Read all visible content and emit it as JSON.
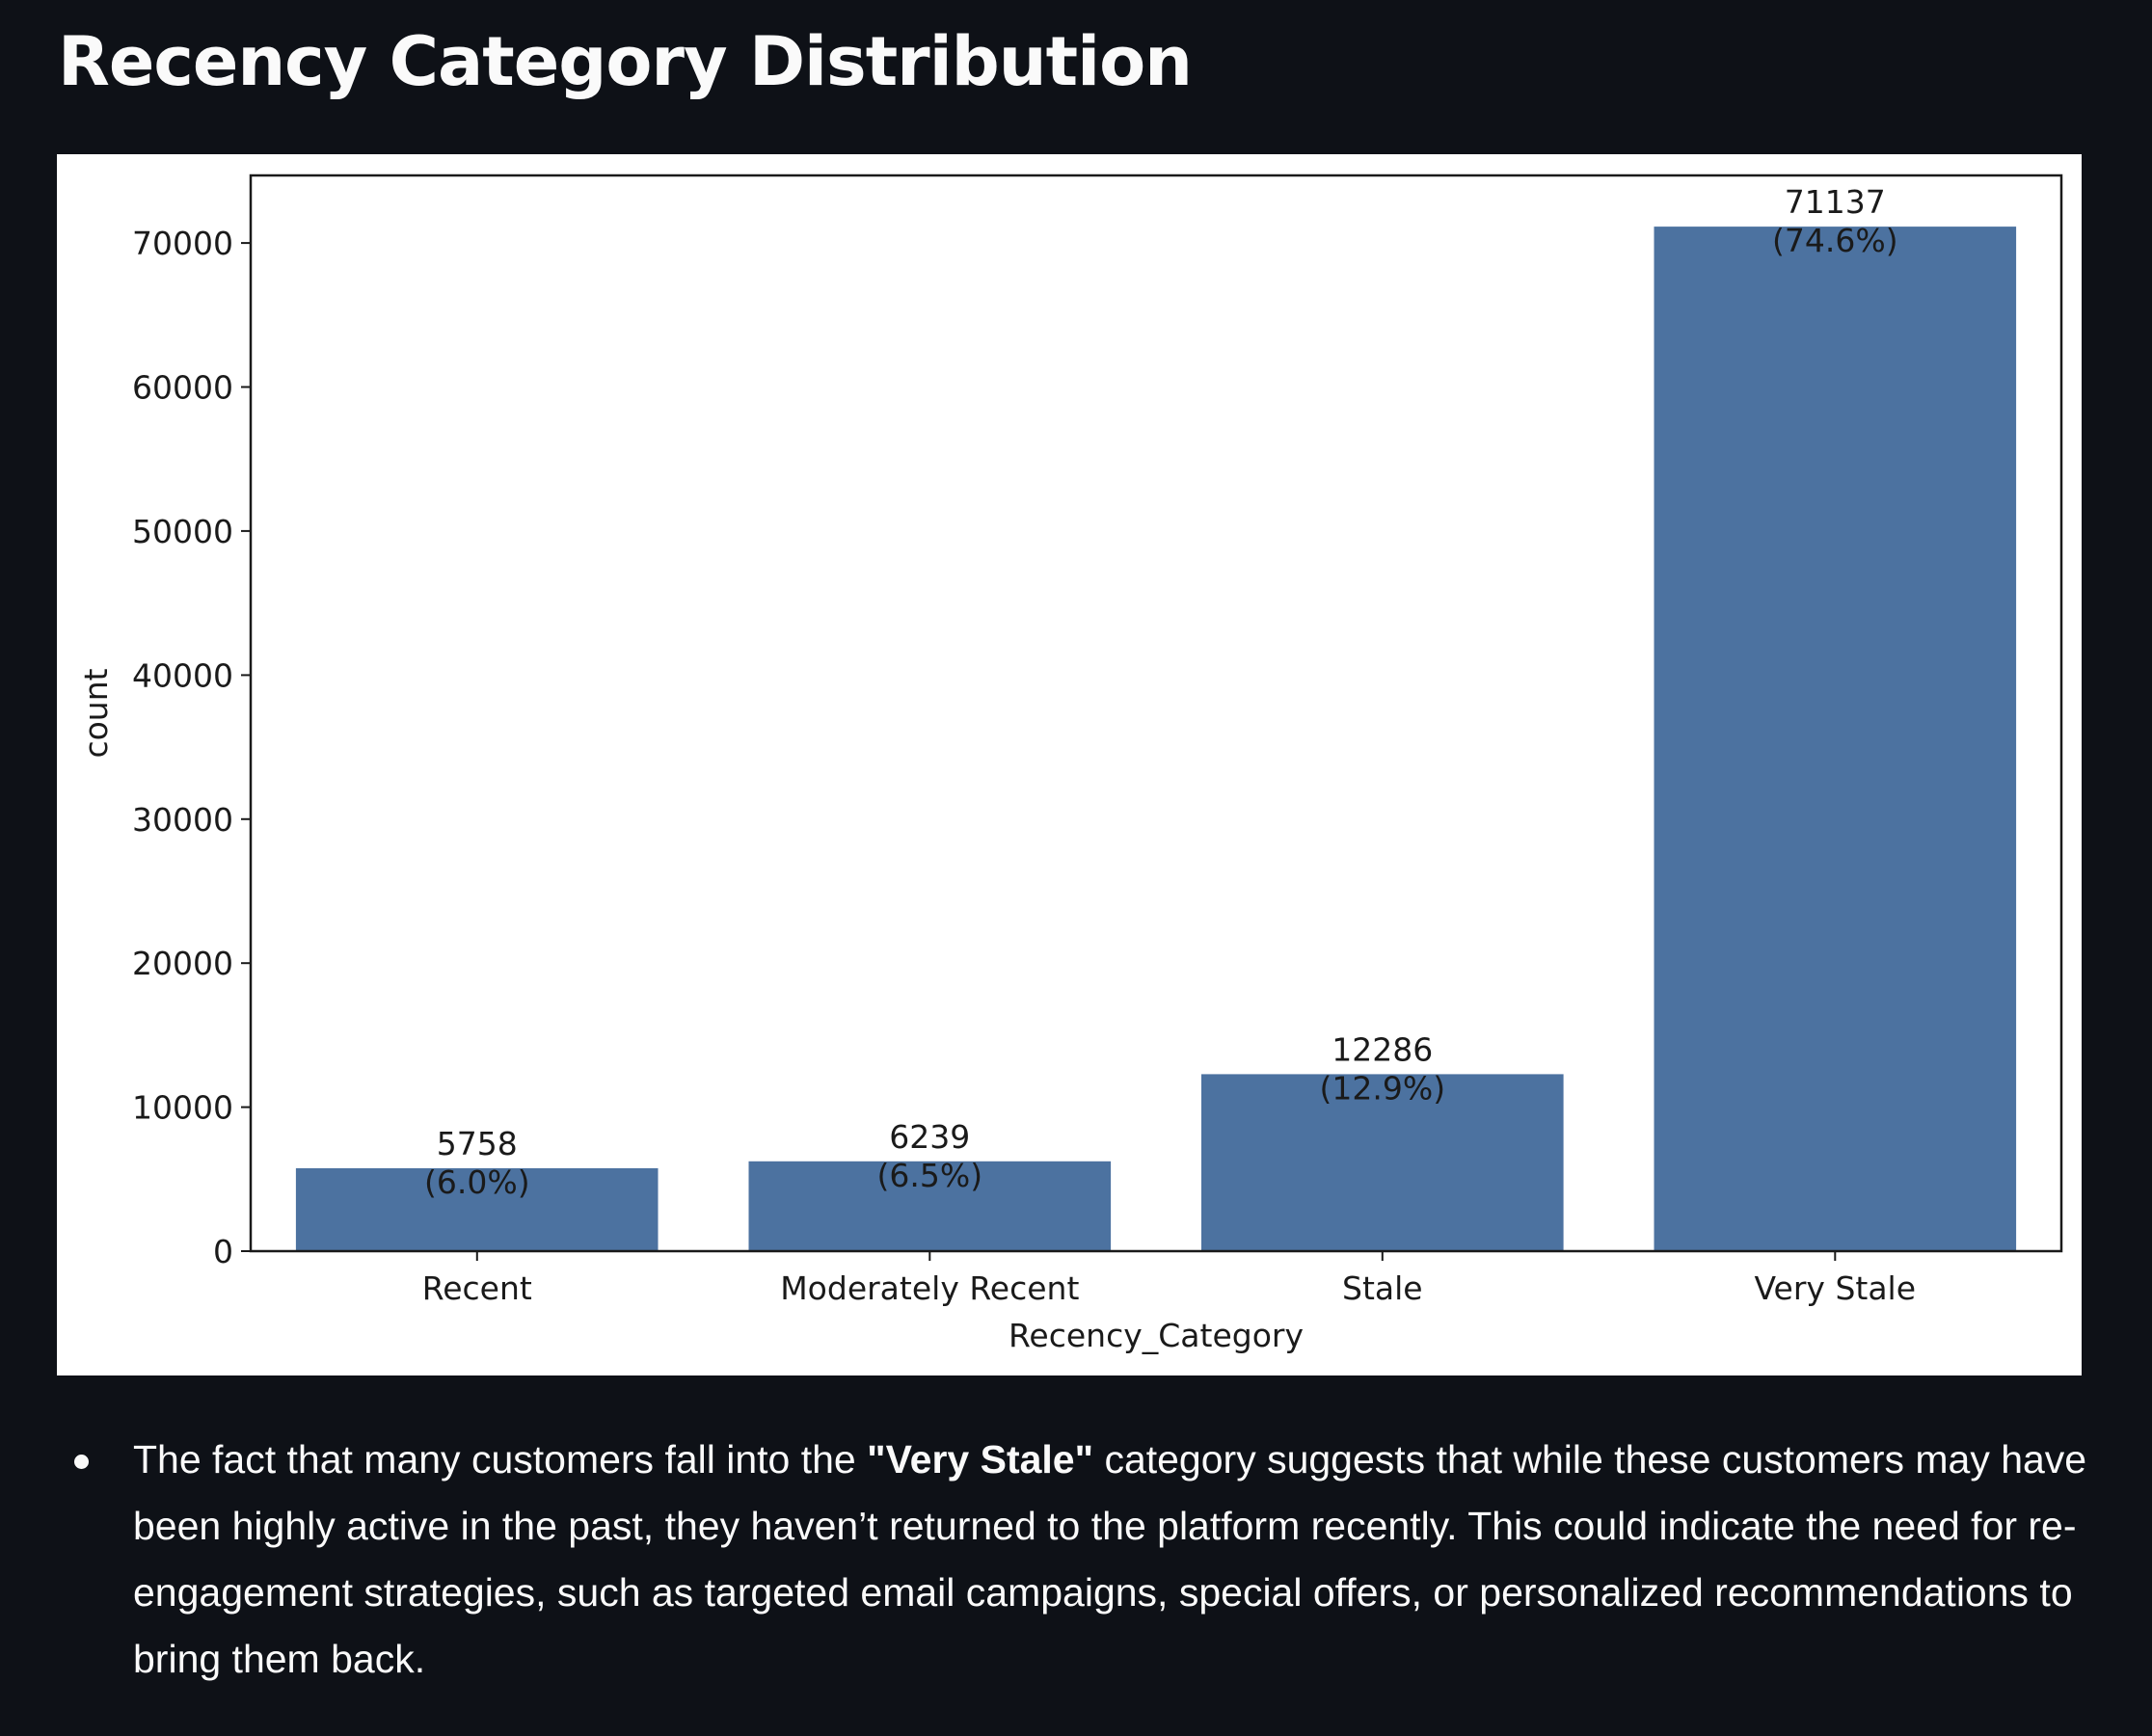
{
  "page": {
    "title": "Recency Category Distribution"
  },
  "chart_data": {
    "type": "bar",
    "title": "",
    "xlabel": "Recency_Category",
    "ylabel": "count",
    "categories": [
      "Recent",
      "Moderately Recent",
      "Stale",
      "Very Stale"
    ],
    "values": [
      5758,
      6239,
      12286,
      71137
    ],
    "value_labels": [
      "5758",
      "6239",
      "12286",
      "71137"
    ],
    "percent_labels": [
      "(6.0%)",
      "(6.5%)",
      "(12.9%)",
      "(74.6%)"
    ],
    "yticks": [
      0,
      10000,
      20000,
      30000,
      40000,
      50000,
      60000,
      70000
    ],
    "ytick_labels": [
      "0",
      "10000",
      "20000",
      "30000",
      "40000",
      "50000",
      "60000",
      "70000"
    ],
    "ylim": [
      0,
      74693
    ],
    "grid": false,
    "bar_color": "#4c72a0"
  },
  "insight": {
    "before": "The fact that many customers fall into the ",
    "emphasis": "\"Very Stale\"",
    "after": " category suggests that while these customers may have been highly active in the past, they haven’t returned to the platform recently. This could indicate the need for re-engagement strategies, such as targeted email campaigns, special offers, or personalized recommendations to bring them back."
  },
  "colors": {
    "background": "#0e1117",
    "text": "#fafafa",
    "chart_background": "#ffffff"
  }
}
